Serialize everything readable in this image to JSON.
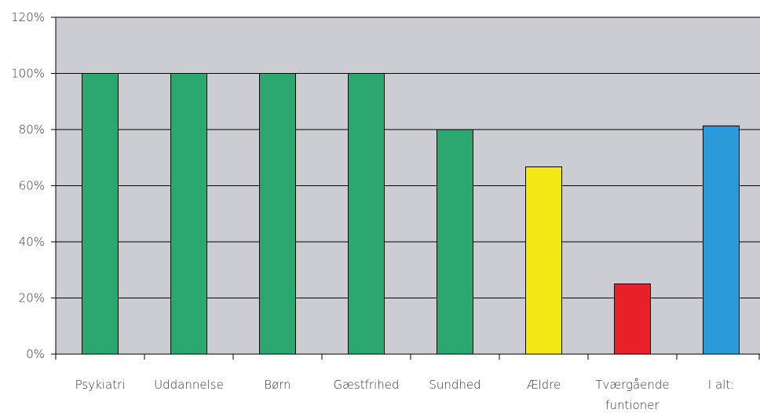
{
  "chart_data": {
    "type": "bar",
    "categories": [
      "Psykiatri",
      "Uddannelse",
      "Børn",
      "Gæstfrihed",
      "Sundhed",
      "Ældre",
      "Tværgående funtioner",
      "I alt:"
    ],
    "category_lines": [
      [
        "Psykiatri"
      ],
      [
        "Uddannelse"
      ],
      [
        "Børn"
      ],
      [
        "Gæstfrihed"
      ],
      [
        "Sundhed"
      ],
      [
        "Ældre"
      ],
      [
        "Tværgående",
        "funtioner"
      ],
      [
        "I alt:"
      ]
    ],
    "values": [
      100,
      100,
      100,
      100,
      80,
      66.7,
      25,
      81.3
    ],
    "bar_colors": [
      "#2aa870",
      "#2aa870",
      "#2aa870",
      "#2aa870",
      "#2aa870",
      "#f2e813",
      "#e8202a",
      "#2a9ad8"
    ],
    "ylim": [
      0,
      120
    ],
    "yticks": [
      0,
      20,
      40,
      60,
      80,
      100,
      120
    ],
    "ytick_labels": [
      "0%",
      "20%",
      "40%",
      "60%",
      "80%",
      "100%",
      "120%"
    ],
    "grid": true,
    "plot_background": "#cccdd2",
    "title": "",
    "xlabel": "",
    "ylabel": ""
  }
}
